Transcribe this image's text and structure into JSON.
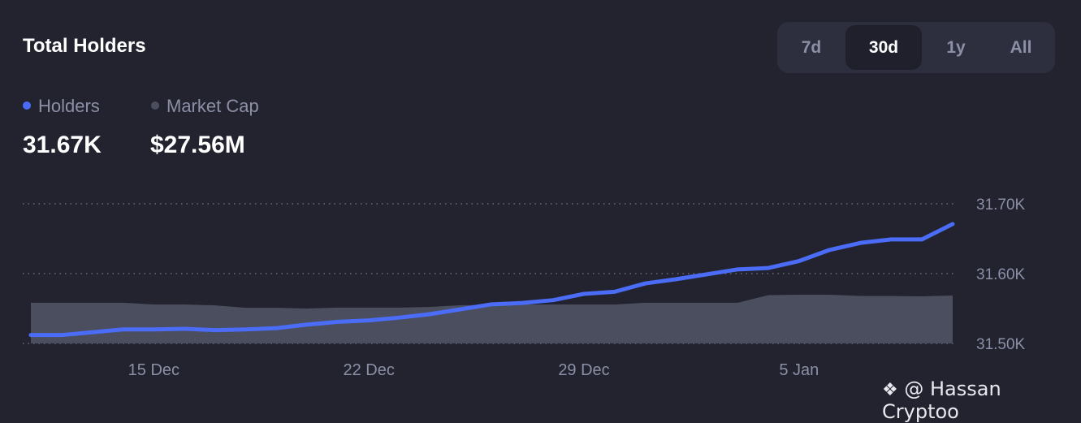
{
  "header": {
    "title": "Total Holders"
  },
  "range_selector": {
    "options": [
      "7d",
      "30d",
      "1y",
      "All"
    ],
    "selected": "30d"
  },
  "legend": [
    {
      "label": "Holders",
      "value": "31.67K",
      "color": "#4a6cf7"
    },
    {
      "label": "Market Cap",
      "value": "$27.56M",
      "color": "#4b4e5e"
    }
  ],
  "watermark": "@ Hassan Cryptoo",
  "colors": {
    "background": "#22232f",
    "holders_line": "#4a6cf7",
    "market_cap_area": "#4b4e5e"
  },
  "chart_data": {
    "type": "line",
    "x_tick_labels": [
      "15 Dec",
      "22 Dec",
      "29 Dec",
      "5 Jan"
    ],
    "y_tick_labels": [
      "31.70K",
      "31.60K",
      "31.50K"
    ],
    "ylim": [
      31500,
      31700
    ],
    "grid": "horizontal dotted",
    "x": [
      "11 Dec",
      "12 Dec",
      "13 Dec",
      "14 Dec",
      "15 Dec",
      "16 Dec",
      "17 Dec",
      "18 Dec",
      "19 Dec",
      "20 Dec",
      "21 Dec",
      "22 Dec",
      "23 Dec",
      "24 Dec",
      "25 Dec",
      "26 Dec",
      "27 Dec",
      "28 Dec",
      "29 Dec",
      "30 Dec",
      "31 Dec",
      "1 Jan",
      "2 Jan",
      "3 Jan",
      "4 Jan",
      "5 Jan",
      "6 Jan",
      "7 Jan",
      "8 Jan",
      "9 Jan",
      "10 Jan"
    ],
    "series": [
      {
        "name": "Holders",
        "type": "line",
        "values": [
          31512,
          31512,
          31516,
          31520,
          31520,
          31521,
          31519,
          31520,
          31522,
          31527,
          31531,
          31533,
          31537,
          31542,
          31549,
          31556,
          31558,
          31562,
          31571,
          31574,
          31586,
          31592,
          31599,
          31606,
          31608,
          31618,
          31634,
          31644,
          31649,
          31649,
          31671
        ]
      },
      {
        "name": "Market Cap",
        "type": "area",
        "unit": "$M",
        "values": [
          23.4,
          23.4,
          23.4,
          23.4,
          22.4,
          22.4,
          21.9,
          20.5,
          20.5,
          20.1,
          20.6,
          20.6,
          20.6,
          21.0,
          22.0,
          22.0,
          22.4,
          22.4,
          22.4,
          22.4,
          23.4,
          23.4,
          23.4,
          23.4,
          27.8,
          28.0,
          28.0,
          27.3,
          27.3,
          27.1,
          27.56
        ]
      }
    ]
  }
}
